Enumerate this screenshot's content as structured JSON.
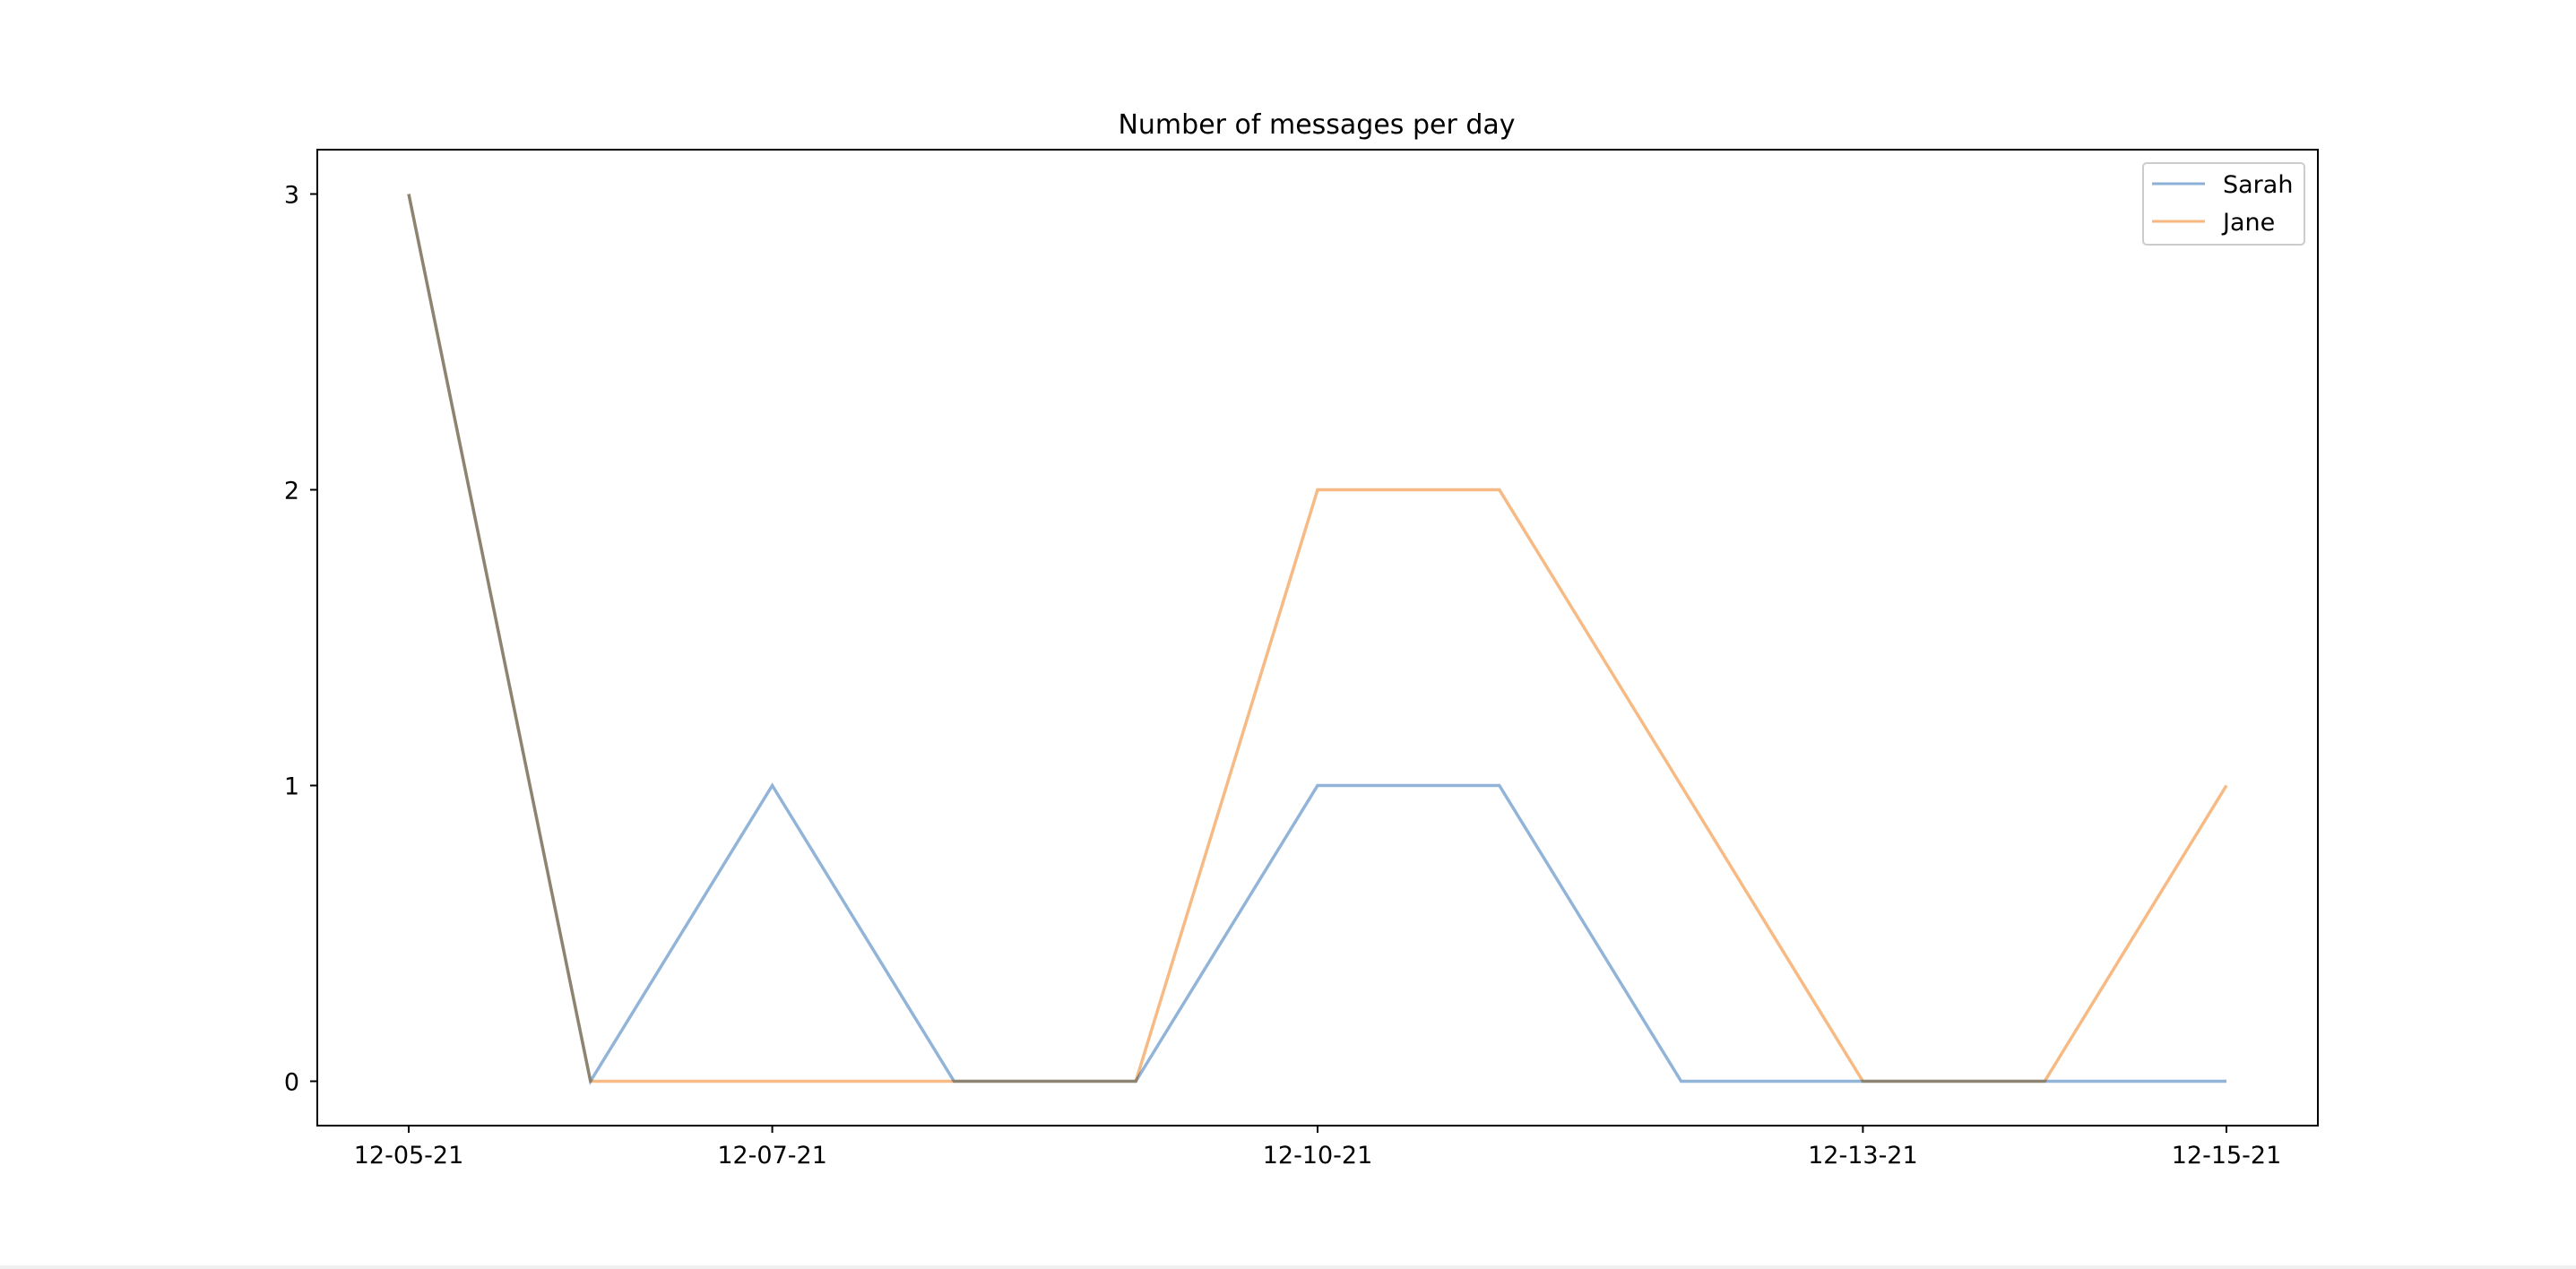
{
  "chart_data": {
    "type": "line",
    "title": "Number of messages per day",
    "xlabel": "",
    "ylabel": "",
    "x": [
      "12-05-21",
      "12-06-21",
      "12-07-21",
      "12-08-21",
      "12-09-21",
      "12-10-21",
      "12-11-21",
      "12-12-21",
      "12-13-21",
      "12-14-21",
      "12-15-21"
    ],
    "x_tick_labels": [
      "12-05-21",
      "12-07-21",
      "12-10-21",
      "12-13-21",
      "12-15-21"
    ],
    "y_ticks": [
      0,
      1,
      2,
      3
    ],
    "ylim": [
      -0.15,
      3.15
    ],
    "series": [
      {
        "name": "Sarah",
        "color": "#8cb0d6",
        "values": [
          3,
          0,
          1,
          0,
          0,
          1,
          1,
          0,
          0,
          0,
          0
        ]
      },
      {
        "name": "Jane",
        "color": "#f7b77e",
        "values": [
          3,
          0,
          0,
          0,
          0,
          2,
          2,
          1,
          0,
          0,
          1
        ]
      }
    ],
    "grid": false,
    "legend": "top-right"
  }
}
